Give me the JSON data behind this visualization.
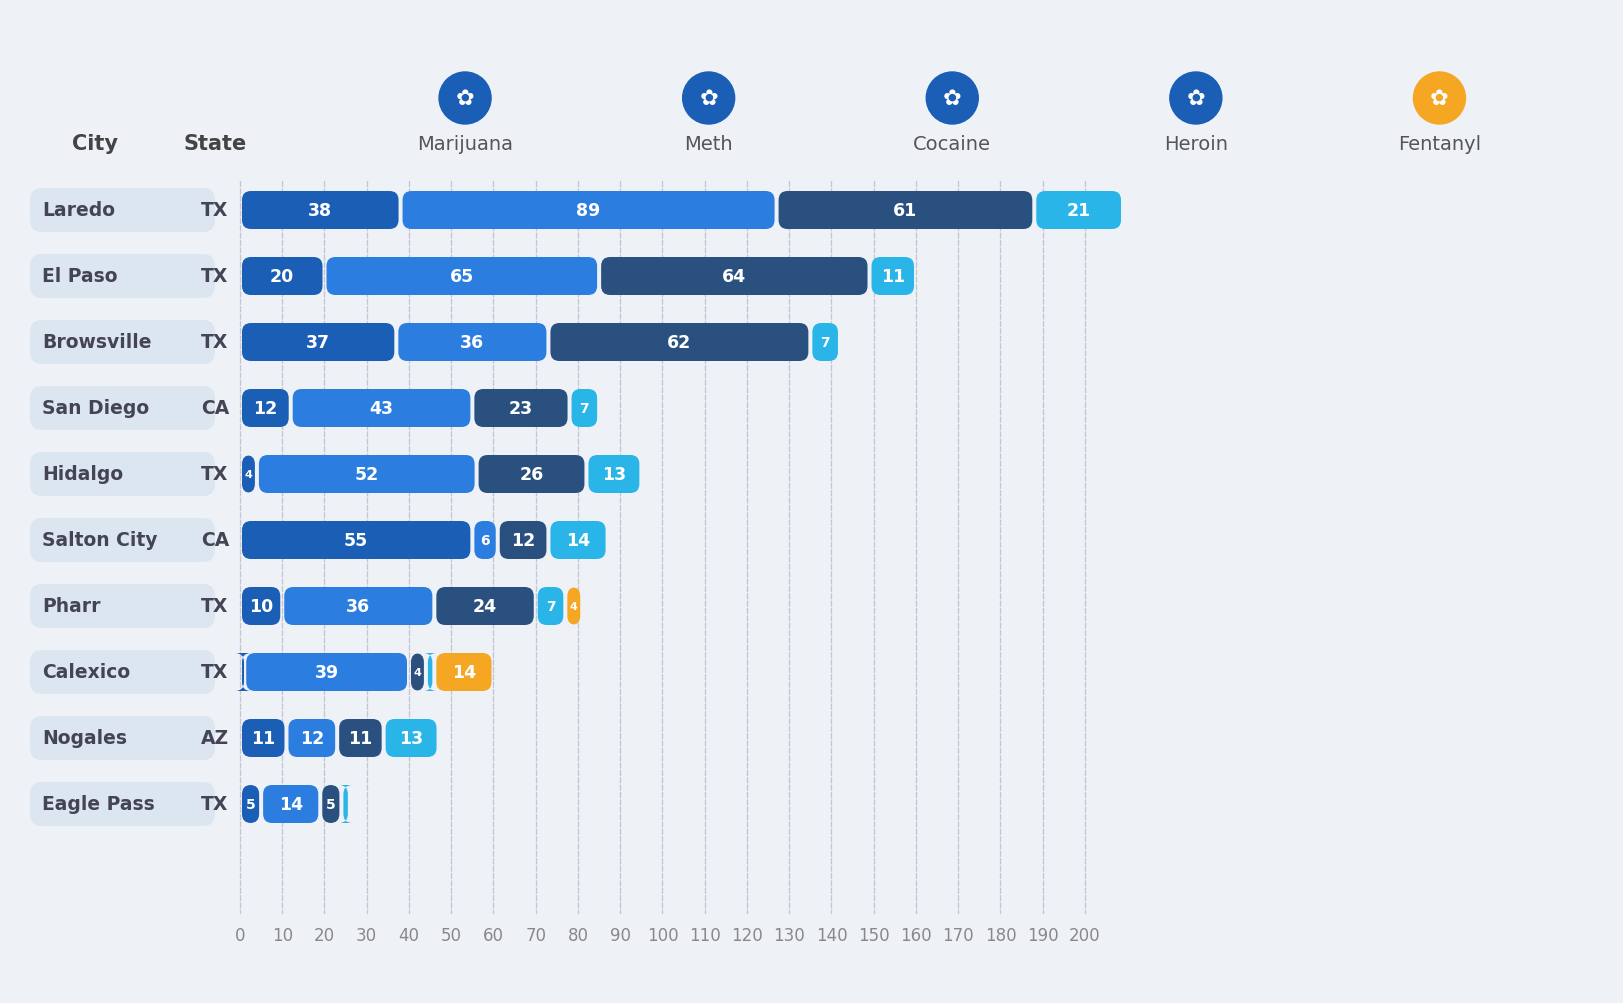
{
  "cities": [
    "Laredo",
    "El Paso",
    "Browsville",
    "San Diego",
    "Hidalgo",
    "Salton City",
    "Pharr",
    "Calexico",
    "Nogales",
    "Eagle Pass"
  ],
  "states": [
    "TX",
    "TX",
    "TX",
    "CA",
    "TX",
    "CA",
    "TX",
    "TX",
    "AZ",
    "TX"
  ],
  "drug_data": [
    {
      "marijuana": 38,
      "meth": 89,
      "cocaine": 61,
      "heroin": 21,
      "fentanyl": 0
    },
    {
      "marijuana": 20,
      "meth": 65,
      "cocaine": 64,
      "heroin": 11,
      "fentanyl": 0
    },
    {
      "marijuana": 37,
      "meth": 36,
      "cocaine": 62,
      "heroin": 7,
      "fentanyl": 0
    },
    {
      "marijuana": 12,
      "meth": 43,
      "cocaine": 23,
      "heroin": 7,
      "fentanyl": 0
    },
    {
      "marijuana": 4,
      "meth": 52,
      "cocaine": 26,
      "heroin": 13,
      "fentanyl": 0
    },
    {
      "marijuana": 55,
      "meth": 6,
      "cocaine": 12,
      "heroin": 14,
      "fentanyl": 0
    },
    {
      "marijuana": 10,
      "meth": 36,
      "cocaine": 24,
      "heroin": 7,
      "fentanyl": 4
    },
    {
      "marijuana": 1,
      "meth": 39,
      "cocaine": 4,
      "heroin": 2,
      "fentanyl": 14
    },
    {
      "marijuana": 11,
      "meth": 12,
      "cocaine": 11,
      "heroin": 13,
      "fentanyl": 0
    },
    {
      "marijuana": 5,
      "meth": 14,
      "cocaine": 5,
      "heroin": 2,
      "fentanyl": 0
    }
  ],
  "drug_colors": {
    "marijuana": "#1b5eb5",
    "meth": "#2b7de0",
    "cocaine": "#2a5080",
    "heroin": "#29b5e8",
    "fentanyl": "#f5a623"
  },
  "background_color": "#eef2f7",
  "city_label_bg": "#dce6f0",
  "drug_labels": [
    "Marijuana",
    "Meth",
    "Cocaine",
    "Heroin",
    "Fentanyl"
  ],
  "icon_colors": [
    "#1b5eb5",
    "#1b5eb5",
    "#1b5eb5",
    "#1b5eb5",
    "#f5a623"
  ],
  "data_max": 200,
  "xtick_step": 10
}
